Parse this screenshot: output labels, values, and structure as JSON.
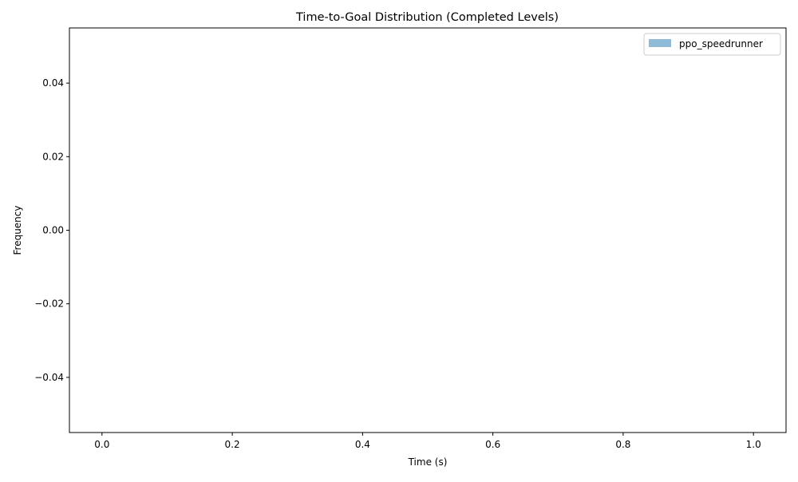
{
  "chart_data": {
    "type": "bar",
    "title": "Time-to-Goal Distribution (Completed Levels)",
    "xlabel": "Time (s)",
    "ylabel": "Frequency",
    "xlim": [
      -0.05,
      1.05
    ],
    "ylim": [
      -0.055,
      0.055
    ],
    "xticks": [
      0.0,
      0.2,
      0.4,
      0.6,
      0.8,
      1.0
    ],
    "xtick_labels": [
      "0.0",
      "0.2",
      "0.4",
      "0.6",
      "0.8",
      "1.0"
    ],
    "yticks": [
      -0.04,
      -0.02,
      0.0,
      0.02,
      0.04
    ],
    "ytick_labels": [
      "−0.04",
      "−0.02",
      "0.00",
      "0.02",
      "0.04"
    ],
    "grid": false,
    "legend_position": "top-right",
    "series": [
      {
        "name": "ppo_speedrunner",
        "color": "#8fbbd9",
        "values": []
      }
    ]
  }
}
